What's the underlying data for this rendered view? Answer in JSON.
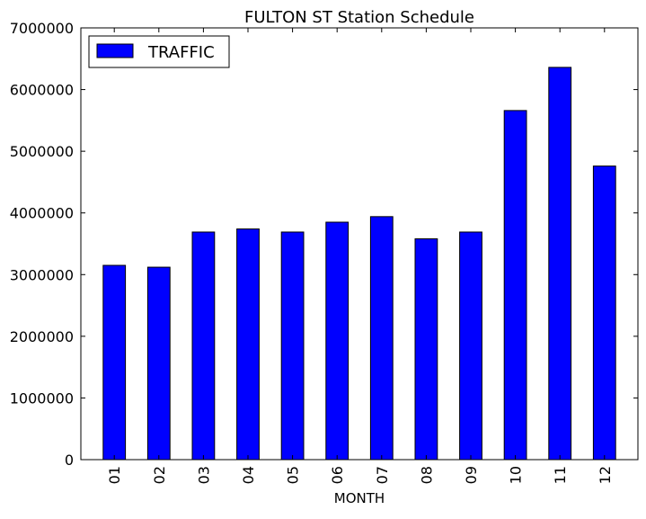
{
  "chart_data": {
    "type": "bar",
    "title": "FULTON ST Station Schedule",
    "xlabel": "MONTH",
    "ylabel": "",
    "categories": [
      "01",
      "02",
      "03",
      "04",
      "05",
      "06",
      "07",
      "08",
      "09",
      "10",
      "11",
      "12"
    ],
    "series": [
      {
        "name": "TRAFFIC",
        "color": "#0000ff",
        "values": [
          3150000,
          3120000,
          3690000,
          3740000,
          3690000,
          3850000,
          3940000,
          3580000,
          3690000,
          5660000,
          6360000,
          4760000
        ]
      }
    ],
    "ylim": [
      0,
      7000000
    ],
    "yticks": [
      "0",
      "1000000",
      "2000000",
      "3000000",
      "4000000",
      "5000000",
      "6000000",
      "7000000"
    ],
    "grid": false,
    "legend_position": "top-left",
    "x_tick_rotation": "vertical"
  }
}
